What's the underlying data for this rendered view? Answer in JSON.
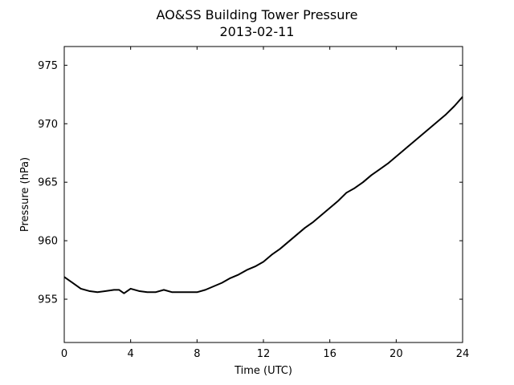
{
  "chart_data": {
    "type": "line",
    "title": "AO&SS Building Tower Pressure",
    "subtitle": "2013-02-11",
    "xlabel": "Time (UTC)",
    "ylabel": "Pressure (hPa)",
    "xlim": [
      0,
      24
    ],
    "ylim": [
      951.3,
      976.6
    ],
    "xticks": [
      0,
      4,
      8,
      12,
      16,
      20,
      24
    ],
    "yticks": [
      955,
      960,
      965,
      970,
      975
    ],
    "grid": false,
    "legend": "none",
    "series": [
      {
        "color": "#000000",
        "x": [
          0,
          0.5,
          1,
          1.5,
          2,
          2.5,
          3,
          3.3,
          3.6,
          4,
          4.5,
          5,
          5.5,
          6,
          6.5,
          7,
          7.5,
          8,
          8.5,
          9,
          9.5,
          10,
          10.5,
          11,
          11.5,
          12,
          12.5,
          13,
          13.5,
          14,
          14.5,
          15,
          15.5,
          16,
          16.5,
          17,
          17.5,
          18,
          18.5,
          19,
          19.5,
          20,
          20.5,
          21,
          21.5,
          22,
          22.5,
          23,
          23.5,
          24
        ],
        "y": [
          956.9,
          956.4,
          955.9,
          955.7,
          955.6,
          955.7,
          955.8,
          955.8,
          955.5,
          955.9,
          955.7,
          955.6,
          955.6,
          955.8,
          955.6,
          955.6,
          955.6,
          955.6,
          955.8,
          956.1,
          956.4,
          956.8,
          957.1,
          957.5,
          957.8,
          958.2,
          958.8,
          959.3,
          959.9,
          960.5,
          961.1,
          961.6,
          962.2,
          962.8,
          963.4,
          964.1,
          964.5,
          965.0,
          965.6,
          966.1,
          966.6,
          967.2,
          967.8,
          968.4,
          969.0,
          969.6,
          970.2,
          970.8,
          971.5,
          972.3
        ]
      }
    ]
  }
}
